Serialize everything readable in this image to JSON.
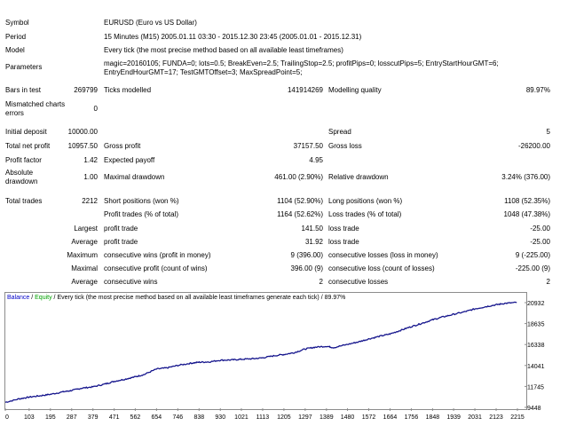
{
  "report": {
    "symbol_label": "Symbol",
    "symbol_value": "EURUSD (Euro vs US Dollar)",
    "period_label": "Period",
    "period_value": "15 Minutes (M15) 2005.01.11 03:30 - 2015.12.30 23:45 (2005.01.01 - 2015.12.31)",
    "model_label": "Model",
    "model_value": "Every tick (the most precise method based on all available least timeframes)",
    "parameters_label": "Parameters",
    "parameters_value": "magic=20160105; FUNDA=0; lots=0.5; BreakEven=2.5; TrailingStop=2.5; profitPips=0; losscutPips=5; EntryStartHourGMT=6; EntryEndHourGMT=17; TestGMTOffset=3; MaxSpreadPoint=5;",
    "bars_label": "Bars in test",
    "bars_value": "269799",
    "ticks_label": "Ticks modelled",
    "ticks_value": "141914269",
    "quality_label": "Modelling quality",
    "quality_value": "89.97%",
    "mismatch_label": "Mismatched charts errors",
    "mismatch_value": "0",
    "deposit_label": "Initial deposit",
    "deposit_value": "10000.00",
    "spread_label": "Spread",
    "spread_value": "5",
    "netprofit_label": "Total net profit",
    "netprofit_value": "10957.50",
    "grossprofit_label": "Gross profit",
    "grossprofit_value": "37157.50",
    "grossloss_label": "Gross loss",
    "grossloss_value": "-26200.00",
    "pf_label": "Profit factor",
    "pf_value": "1.42",
    "payoff_label": "Expected payoff",
    "payoff_value": "4.95",
    "absdd_label": "Absolute drawdown",
    "absdd_value": "1.00",
    "maxdd_label": "Maximal drawdown",
    "maxdd_value": "461.00 (2.90%)",
    "reldd_label": "Relative drawdown",
    "reldd_value": "3.24% (376.00)",
    "trades_label": "Total trades",
    "trades_value": "2212",
    "short_label": "Short positions (won %)",
    "short_value": "1104 (52.90%)",
    "long_label": "Long positions (won %)",
    "long_value": "1108 (52.35%)",
    "profit_trades_label": "Profit trades (% of total)",
    "profit_trades_value": "1164 (52.62%)",
    "loss_trades_label": "Loss trades (% of total)",
    "loss_trades_value": "1048 (47.38%)",
    "largest_label": "Largest",
    "largest_profit_label": "profit trade",
    "largest_profit_value": "141.50",
    "largest_loss_label": "loss trade",
    "largest_loss_value": "-25.00",
    "average_label": "Average",
    "average_profit_label": "profit trade",
    "average_profit_value": "31.92",
    "average_loss_label": "loss trade",
    "average_loss_value": "-25.00",
    "maximum_label": "Maximum",
    "max_cons_wins_label": "consecutive wins (profit in money)",
    "max_cons_wins_value": "9 (396.00)",
    "max_cons_losses_label": "consecutive losses (loss in money)",
    "max_cons_losses_value": "9 (-225.00)",
    "maximal_label": "Maximal",
    "maximal_profit_label": "consecutive profit (count of wins)",
    "maximal_profit_value": "396.00 (9)",
    "maximal_loss_label": "consecutive loss (count of losses)",
    "maximal_loss_value": "-225.00 (9)",
    "avg2_label": "Average",
    "avg_cons_wins_label": "consecutive wins",
    "avg_cons_wins_value": "2",
    "avg_cons_losses_label": "consecutive losses",
    "avg_cons_losses_value": "2"
  },
  "chart_header": {
    "balance": "Balance",
    "sep1": " / ",
    "equity": "Equity",
    "rest": " / Every tick (the most precise method based on all available least timeframes generate each tick) / 89.97%",
    "balance_color": "#0000c8",
    "equity_color": "#00a000"
  },
  "chart_data": {
    "type": "line",
    "title": "",
    "xlabel": "",
    "ylabel": "",
    "x_ticks": [
      "0",
      "103",
      "195",
      "287",
      "379",
      "471",
      "562",
      "654",
      "746",
      "838",
      "930",
      "1021",
      "1113",
      "1205",
      "1297",
      "1389",
      "1480",
      "1572",
      "1664",
      "1756",
      "1848",
      "1939",
      "2031",
      "2123",
      "2215"
    ],
    "y_ticks": [
      "20932",
      "18635",
      "16338",
      "14041",
      "11745",
      "9448"
    ],
    "xlim": [
      0,
      2215
    ],
    "ylim": [
      9448,
      20932
    ],
    "line_color": "#14148c",
    "series": [
      {
        "values": [
          [
            0,
            10000
          ],
          [
            60,
            10380
          ],
          [
            100,
            10560
          ],
          [
            150,
            10720
          ],
          [
            195,
            10880
          ],
          [
            250,
            11150
          ],
          [
            287,
            11300
          ],
          [
            330,
            11550
          ],
          [
            379,
            11700
          ],
          [
            430,
            12000
          ],
          [
            471,
            12300
          ],
          [
            520,
            12550
          ],
          [
            562,
            12800
          ],
          [
            600,
            13050
          ],
          [
            654,
            13650
          ],
          [
            700,
            13780
          ],
          [
            746,
            14050
          ],
          [
            800,
            14280
          ],
          [
            838,
            14400
          ],
          [
            880,
            14430
          ],
          [
            930,
            14620
          ],
          [
            980,
            14650
          ],
          [
            1021,
            14720
          ],
          [
            1070,
            14780
          ],
          [
            1113,
            14880
          ],
          [
            1160,
            15100
          ],
          [
            1205,
            15250
          ],
          [
            1250,
            15450
          ],
          [
            1297,
            15850
          ],
          [
            1340,
            16050
          ],
          [
            1389,
            16150
          ],
          [
            1420,
            16000
          ],
          [
            1480,
            16350
          ],
          [
            1530,
            16650
          ],
          [
            1572,
            16950
          ],
          [
            1620,
            17250
          ],
          [
            1664,
            17500
          ],
          [
            1710,
            17900
          ],
          [
            1756,
            18300
          ],
          [
            1800,
            18650
          ],
          [
            1848,
            19050
          ],
          [
            1890,
            19350
          ],
          [
            1939,
            19650
          ],
          [
            1990,
            19950
          ],
          [
            2031,
            20250
          ],
          [
            2080,
            20500
          ],
          [
            2123,
            20700
          ],
          [
            2160,
            20850
          ],
          [
            2212,
            20950
          ]
        ]
      }
    ]
  }
}
